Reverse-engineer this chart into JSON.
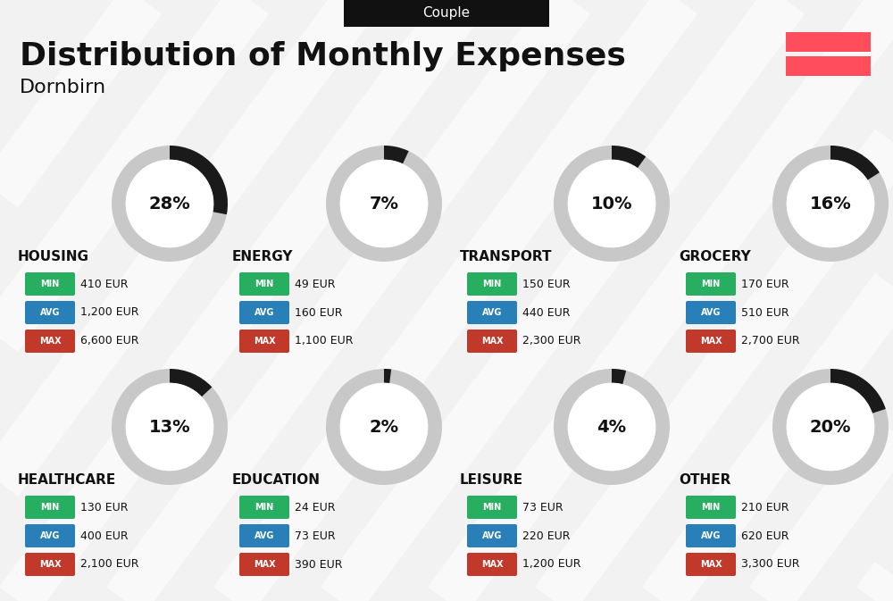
{
  "title": "Distribution of Monthly Expenses",
  "subtitle": "Dornbirn",
  "header_label": "Couple",
  "bg_color": "#f2f2f2",
  "header_bg": "#111111",
  "header_text_color": "#ffffff",
  "flag_color": "#ff4d5b",
  "categories": [
    {
      "name": "HOUSING",
      "percent": 28,
      "min": "410 EUR",
      "avg": "1,200 EUR",
      "max": "6,600 EUR",
      "col": 0,
      "row": 0
    },
    {
      "name": "ENERGY",
      "percent": 7,
      "min": "49 EUR",
      "avg": "160 EUR",
      "max": "1,100 EUR",
      "col": 1,
      "row": 0
    },
    {
      "name": "TRANSPORT",
      "percent": 10,
      "min": "150 EUR",
      "avg": "440 EUR",
      "max": "2,300 EUR",
      "col": 2,
      "row": 0
    },
    {
      "name": "GROCERY",
      "percent": 16,
      "min": "170 EUR",
      "avg": "510 EUR",
      "max": "2,700 EUR",
      "col": 3,
      "row": 0
    },
    {
      "name": "HEALTHCARE",
      "percent": 13,
      "min": "130 EUR",
      "avg": "400 EUR",
      "max": "2,100 EUR",
      "col": 0,
      "row": 1
    },
    {
      "name": "EDUCATION",
      "percent": 2,
      "min": "24 EUR",
      "avg": "73 EUR",
      "max": "390 EUR",
      "col": 1,
      "row": 1
    },
    {
      "name": "LEISURE",
      "percent": 4,
      "min": "73 EUR",
      "avg": "220 EUR",
      "max": "1,200 EUR",
      "col": 2,
      "row": 1
    },
    {
      "name": "OTHER",
      "percent": 20,
      "min": "210 EUR",
      "avg": "620 EUR",
      "max": "3,300 EUR",
      "col": 3,
      "row": 1
    }
  ],
  "min_color": "#27ae60",
  "avg_color": "#2980b9",
  "max_color": "#c0392b",
  "text_color": "#111111",
  "donut_dark": "#1a1a1a",
  "donut_light": "#c8c8c8",
  "white": "#ffffff",
  "diag_color": "#e8e8e8"
}
